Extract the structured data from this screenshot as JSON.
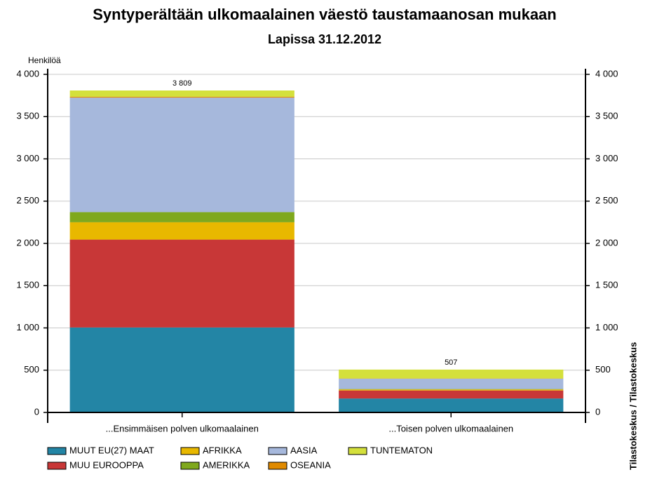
{
  "chart_data": {
    "type": "stacked-bar",
    "title": "Syntyperältään ulkomaalainen väestö taustamaanosan mukaan",
    "subtitle": "Lapissa 31.12.2012",
    "y_label": "Henkilöä",
    "source": "Tilastokeskus / Tilastokeskus",
    "categories": [
      "...Ensimmäisen polven ulkomaalainen",
      "...Toisen polven ulkomaalainen"
    ],
    "series": [
      {
        "name": "MUUT EU(27) MAAT",
        "color": "#2385a5",
        "values": [
          1005,
          165
        ]
      },
      {
        "name": "MUU EUROOPPA",
        "color": "#c83737",
        "values": [
          1040,
          95
        ]
      },
      {
        "name": "AFRIKKA",
        "color": "#e8b800",
        "values": [
          205,
          12
        ]
      },
      {
        "name": "AMERIKKA",
        "color": "#7fa81d",
        "values": [
          120,
          5
        ]
      },
      {
        "name": "AASIA",
        "color": "#a6b8dc",
        "values": [
          1355,
          123
        ]
      },
      {
        "name": "OSEANIA",
        "color": "#e08a00",
        "values": [
          10,
          2
        ]
      },
      {
        "name": "TUNTEMATON",
        "color": "#d4e03c",
        "values": [
          74,
          105
        ]
      }
    ],
    "totals": [
      3809,
      507
    ],
    "total_labels": [
      "3 809",
      "507"
    ],
    "ylim": [
      0,
      4000
    ],
    "yticks": [
      0,
      500,
      {
        "value": 1000,
        "label": "1 000"
      },
      {
        "value": 1500,
        "label": "1 500"
      },
      {
        "value": 2000,
        "label": "2 000"
      },
      {
        "value": 2500,
        "label": "2 500"
      },
      {
        "value": 3000,
        "label": "3 000"
      },
      {
        "value": 3500,
        "label": "3 500"
      },
      {
        "value": 4000,
        "label": "4 000"
      }
    ],
    "grid": true
  }
}
